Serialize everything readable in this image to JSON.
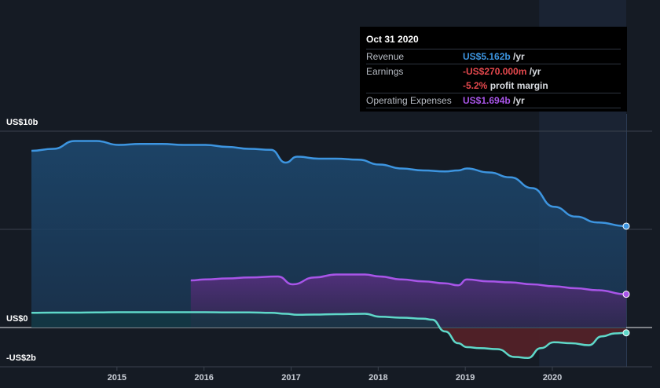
{
  "chart_data": {
    "type": "area",
    "ylim": [
      -2,
      10
    ],
    "y_tick_labels": [
      "US$10b",
      "US$0",
      "-US$2b"
    ],
    "x_tick_labels": [
      "2015",
      "2016",
      "2017",
      "2018",
      "2019",
      "2020"
    ],
    "forecast_band_start": 2019.83,
    "series": [
      {
        "key": "revenue",
        "color": "#3d95e0",
        "x": [
          2014.0,
          2014.25,
          2014.5,
          2014.75,
          2015.0,
          2015.25,
          2015.5,
          2015.75,
          2016.0,
          2016.25,
          2016.5,
          2016.75,
          2016.92,
          2017.05,
          2017.3,
          2017.5,
          2017.75,
          2018.0,
          2018.25,
          2018.5,
          2018.75,
          2018.9,
          2019.0,
          2019.25,
          2019.5,
          2019.75,
          2020.0,
          2020.25,
          2020.5,
          2020.83
        ],
        "values": [
          9.0,
          9.1,
          9.5,
          9.5,
          9.3,
          9.35,
          9.35,
          9.3,
          9.3,
          9.2,
          9.1,
          9.05,
          8.4,
          8.7,
          8.6,
          8.6,
          8.55,
          8.3,
          8.1,
          8.0,
          7.95,
          8.0,
          8.1,
          7.9,
          7.65,
          7.1,
          6.15,
          5.65,
          5.35,
          5.162
        ]
      },
      {
        "key": "operating_expenses",
        "color": "#a855e8",
        "x": [
          2015.83,
          2016.0,
          2016.25,
          2016.5,
          2016.83,
          2017.0,
          2017.25,
          2017.5,
          2017.83,
          2018.0,
          2018.25,
          2018.5,
          2018.75,
          2018.9,
          2019.0,
          2019.25,
          2019.5,
          2019.75,
          2020.0,
          2020.25,
          2020.5,
          2020.83
        ],
        "values": [
          2.4,
          2.45,
          2.5,
          2.55,
          2.6,
          2.2,
          2.55,
          2.7,
          2.7,
          2.6,
          2.45,
          2.35,
          2.25,
          2.15,
          2.45,
          2.35,
          2.3,
          2.2,
          2.1,
          2.0,
          1.9,
          1.694
        ]
      },
      {
        "key": "earnings",
        "color": "#5fd8c9",
        "x": [
          2014.0,
          2014.25,
          2014.5,
          2014.75,
          2015.0,
          2015.25,
          2015.5,
          2015.75,
          2016.0,
          2016.25,
          2016.5,
          2016.75,
          2016.92,
          2017.05,
          2017.25,
          2017.5,
          2017.83,
          2018.0,
          2018.25,
          2018.5,
          2018.6,
          2018.75,
          2018.9,
          2019.0,
          2019.15,
          2019.35,
          2019.55,
          2019.7,
          2019.85,
          2020.0,
          2020.2,
          2020.4,
          2020.55,
          2020.7,
          2020.83
        ],
        "values": [
          0.75,
          0.76,
          0.76,
          0.77,
          0.78,
          0.78,
          0.78,
          0.78,
          0.78,
          0.77,
          0.77,
          0.75,
          0.7,
          0.65,
          0.66,
          0.68,
          0.7,
          0.55,
          0.5,
          0.45,
          0.4,
          -0.2,
          -0.8,
          -1.0,
          -1.05,
          -1.1,
          -1.5,
          -1.55,
          -1.05,
          -0.75,
          -0.8,
          -0.9,
          -0.45,
          -0.3,
          -0.27
        ]
      }
    ]
  },
  "tooltip": {
    "date": "Oct 31 2020",
    "revenue_label": "Revenue",
    "revenue_value": "US$5.162b",
    "earnings_label": "Earnings",
    "earnings_value": "-US$270.000m",
    "margin_value": "-5.2%",
    "margin_label": "profit margin",
    "opex_label": "Operating Expenses",
    "opex_value": "US$1.694b",
    "unit_label": "/yr",
    "revenue_color": "#3d95e0",
    "earnings_color": "#e5484d",
    "opex_color": "#a855e8"
  }
}
